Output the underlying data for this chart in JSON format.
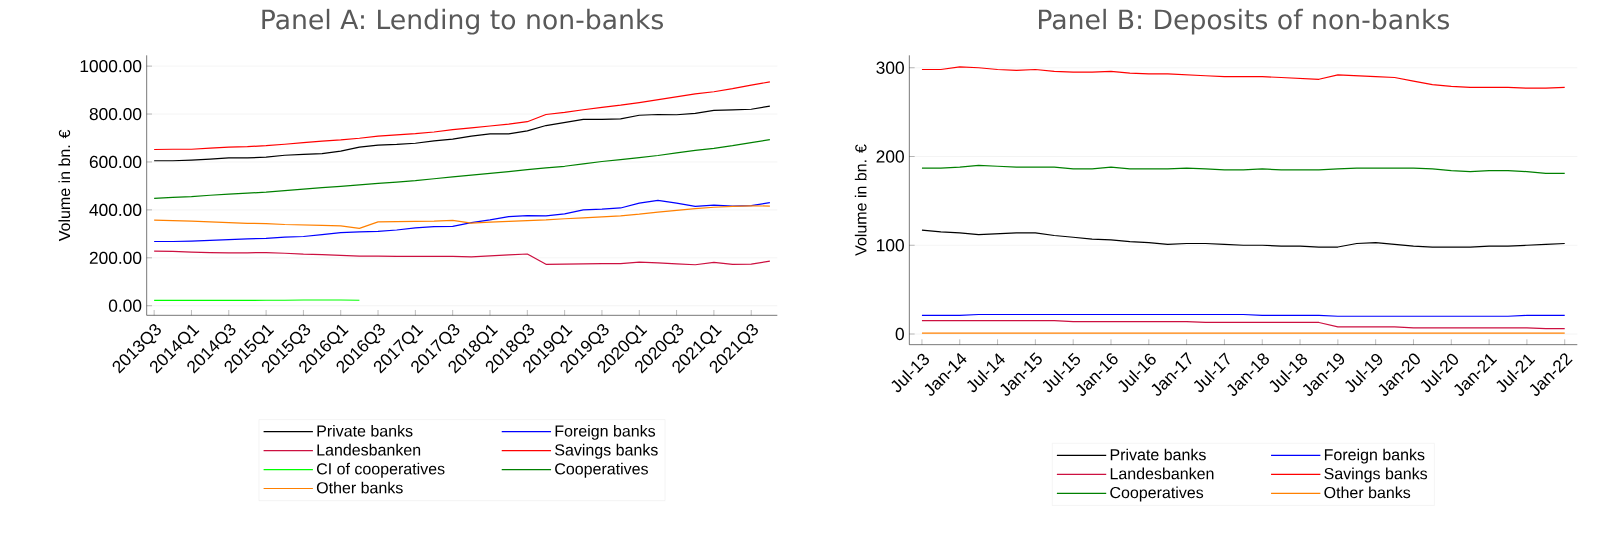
{
  "chart_data": [
    {
      "type": "line",
      "title": "Panel A: Lending to non-banks",
      "ylabel": "Volume in bn. €",
      "categories": [
        "2013Q3",
        null,
        "2014Q1",
        null,
        "2014Q3",
        null,
        "2015Q1",
        null,
        "2015Q3",
        null,
        "2016Q1",
        null,
        "2016Q3",
        null,
        "2017Q1",
        null,
        "2017Q3",
        null,
        "2018Q1",
        null,
        "2018Q3",
        null,
        "2019Q1",
        null,
        "2019Q3",
        null,
        "2020Q1",
        null,
        "2020Q3",
        null,
        "2021Q1",
        null,
        "2021Q3",
        null
      ],
      "ylim": [
        -40,
        1045
      ],
      "yticks": [
        {
          "value": 0,
          "label": "0.00"
        },
        {
          "value": 200,
          "label": "200.00"
        },
        {
          "value": 400,
          "label": "400.00"
        },
        {
          "value": 600,
          "label": "600.00"
        },
        {
          "value": 800,
          "label": "800.00"
        },
        {
          "value": 1000,
          "label": "1000.00"
        }
      ],
      "grid": "y",
      "legend": "bottom",
      "series": [
        {
          "name": "Private banks",
          "color": "#000000",
          "values": [
            605,
            605,
            608,
            612,
            617,
            617,
            620,
            628,
            632,
            635,
            645,
            662,
            670,
            673,
            678,
            688,
            695,
            708,
            717,
            717,
            730,
            752,
            765,
            778,
            778,
            780,
            795,
            798,
            797,
            803,
            815,
            817,
            820,
            833
          ]
        },
        {
          "name": "Foreign banks",
          "color": "#0000ff",
          "values": [
            268,
            268,
            270,
            273,
            276,
            279,
            281,
            286,
            289,
            297,
            305,
            308,
            310,
            316,
            325,
            330,
            331,
            347,
            358,
            372,
            376,
            375,
            383,
            400,
            403,
            408,
            428,
            440,
            428,
            415,
            420,
            416,
            418,
            430
          ]
        },
        {
          "name": "Landesbanken",
          "color": "#cc1040",
          "values": [
            228,
            227,
            224,
            222,
            221,
            221,
            222,
            219,
            215,
            213,
            210,
            207,
            207,
            206,
            206,
            206,
            206,
            204,
            208,
            212,
            216,
            173,
            174,
            175,
            176,
            176,
            182,
            179,
            175,
            171,
            181,
            173,
            174,
            186
          ]
        },
        {
          "name": "Savings banks",
          "color": "#ff0000",
          "values": [
            652,
            653,
            653,
            658,
            662,
            664,
            668,
            674,
            681,
            687,
            692,
            699,
            708,
            713,
            718,
            725,
            735,
            742,
            750,
            758,
            768,
            798,
            807,
            818,
            828,
            837,
            848,
            860,
            872,
            884,
            893,
            906,
            921,
            934
          ]
        },
        {
          "name": "CI of cooperatives",
          "color": "#00ff00",
          "values": [
            22,
            22,
            22,
            22,
            22,
            22,
            23,
            23,
            24,
            24,
            24,
            23,
            null,
            null,
            null,
            null,
            null,
            null,
            null,
            null,
            null,
            null,
            null,
            null,
            null,
            null,
            null,
            null,
            null,
            null,
            null,
            null,
            null,
            null
          ]
        },
        {
          "name": "Cooperatives",
          "color": "#008000",
          "values": [
            448,
            452,
            455,
            461,
            466,
            470,
            474,
            480,
            487,
            493,
            498,
            504,
            511,
            516,
            522,
            530,
            538,
            545,
            552,
            560,
            568,
            575,
            582,
            592,
            602,
            610,
            618,
            627,
            638,
            648,
            657,
            668,
            681,
            693
          ]
        },
        {
          "name": "Other banks",
          "color": "#ff8000",
          "values": [
            357,
            355,
            353,
            350,
            347,
            344,
            343,
            339,
            337,
            335,
            333,
            323,
            350,
            351,
            352,
            353,
            356,
            345,
            349,
            352,
            355,
            358,
            363,
            367,
            371,
            375,
            382,
            391,
            398,
            405,
            411,
            415,
            417,
            416
          ]
        }
      ]
    },
    {
      "type": "line",
      "title": "Panel B: Deposits of non-banks",
      "ylabel": "Volume in bn. €",
      "x": [
        "2013-07",
        "2013-10",
        "2014-01",
        "2014-04",
        "2014-07",
        "2014-10",
        "2015-01",
        "2015-04",
        "2015-07",
        "2015-10",
        "2016-01",
        "2016-04",
        "2016-07",
        "2016-10",
        "2017-01",
        "2017-04",
        "2017-07",
        "2017-10",
        "2018-01",
        "2018-04",
        "2018-07",
        "2018-10",
        "2019-01",
        "2019-04",
        "2019-07",
        "2019-10",
        "2020-01",
        "2020-04",
        "2020-07",
        "2020-10",
        "2021-01",
        "2021-04",
        "2021-07",
        "2021-10",
        "2022-01"
      ],
      "xlim": [
        "2013-05",
        "2022-03"
      ],
      "xticks": [
        {
          "value": "2013-07",
          "label": "Jul-13"
        },
        {
          "value": "2014-01",
          "label": "Jan-14"
        },
        {
          "value": "2014-07",
          "label": "Jul-14"
        },
        {
          "value": "2015-01",
          "label": "Jan-15"
        },
        {
          "value": "2015-07",
          "label": "Jul-15"
        },
        {
          "value": "2016-01",
          "label": "Jan-16"
        },
        {
          "value": "2016-07",
          "label": "Jul-16"
        },
        {
          "value": "2017-01",
          "label": "Jan-17"
        },
        {
          "value": "2017-07",
          "label": "Jul-17"
        },
        {
          "value": "2018-01",
          "label": "Jan-18"
        },
        {
          "value": "2018-07",
          "label": "Jul-18"
        },
        {
          "value": "2019-01",
          "label": "Jan-19"
        },
        {
          "value": "2019-07",
          "label": "Jul-19"
        },
        {
          "value": "2020-01",
          "label": "Jan-20"
        },
        {
          "value": "2020-07",
          "label": "Jul-20"
        },
        {
          "value": "2021-01",
          "label": "Jan-21"
        },
        {
          "value": "2021-07",
          "label": "Jul-21"
        },
        {
          "value": "2022-01",
          "label": "Jan-22"
        }
      ],
      "ylim": [
        -12,
        314
      ],
      "yticks": [
        0,
        100,
        200,
        300
      ],
      "grid": "y",
      "legend": "bottom",
      "series": [
        {
          "name": "Private banks",
          "color": "#000000",
          "values": [
            117,
            115,
            114,
            112,
            113,
            114,
            114,
            111,
            109,
            107,
            106,
            104,
            103,
            101,
            102,
            102,
            101,
            100,
            100,
            99,
            99,
            98,
            98,
            102,
            103,
            101,
            99,
            98,
            98,
            98,
            99,
            99,
            100,
            101,
            102
          ]
        },
        {
          "name": "Foreign banks",
          "color": "#0000ff",
          "values": [
            21,
            21,
            21,
            22,
            22,
            22,
            22,
            22,
            22,
            22,
            22,
            22,
            22,
            22,
            22,
            22,
            22,
            22,
            21,
            21,
            21,
            21,
            20,
            20,
            20,
            20,
            20,
            20,
            20,
            20,
            20,
            20,
            21,
            21,
            21
          ]
        },
        {
          "name": "Landesbanken",
          "color": "#cc1040",
          "values": [
            15,
            15,
            15,
            15,
            15,
            15,
            15,
            15,
            14,
            14,
            14,
            14,
            14,
            14,
            14,
            13,
            13,
            13,
            13,
            13,
            13,
            13,
            8,
            8,
            8,
            8,
            7,
            7,
            7,
            7,
            7,
            7,
            7,
            6,
            6
          ]
        },
        {
          "name": "Savings banks",
          "color": "#ff0000",
          "values": [
            298,
            298,
            301,
            300,
            298,
            297,
            298,
            296,
            295,
            295,
            296,
            294,
            293,
            293,
            292,
            291,
            290,
            290,
            290,
            289,
            288,
            287,
            292,
            291,
            290,
            289,
            285,
            281,
            279,
            278,
            278,
            278,
            277,
            277,
            278
          ]
        },
        {
          "name": "Cooperatives",
          "color": "#008000",
          "values": [
            187,
            187,
            188,
            190,
            189,
            188,
            188,
            188,
            186,
            186,
            188,
            186,
            186,
            186,
            187,
            186,
            185,
            185,
            186,
            185,
            185,
            185,
            186,
            187,
            187,
            187,
            187,
            186,
            184,
            183,
            184,
            184,
            183,
            181,
            181
          ]
        },
        {
          "name": "Other banks",
          "color": "#ff8000",
          "values": [
            1,
            1,
            1,
            1,
            1,
            1,
            1,
            1,
            1,
            1,
            1,
            1,
            1,
            1,
            1,
            1,
            1,
            1,
            1,
            1,
            1,
            1,
            1,
            1,
            1,
            1,
            1,
            1,
            1,
            1,
            1,
            1,
            1,
            1,
            1
          ]
        }
      ]
    }
  ]
}
